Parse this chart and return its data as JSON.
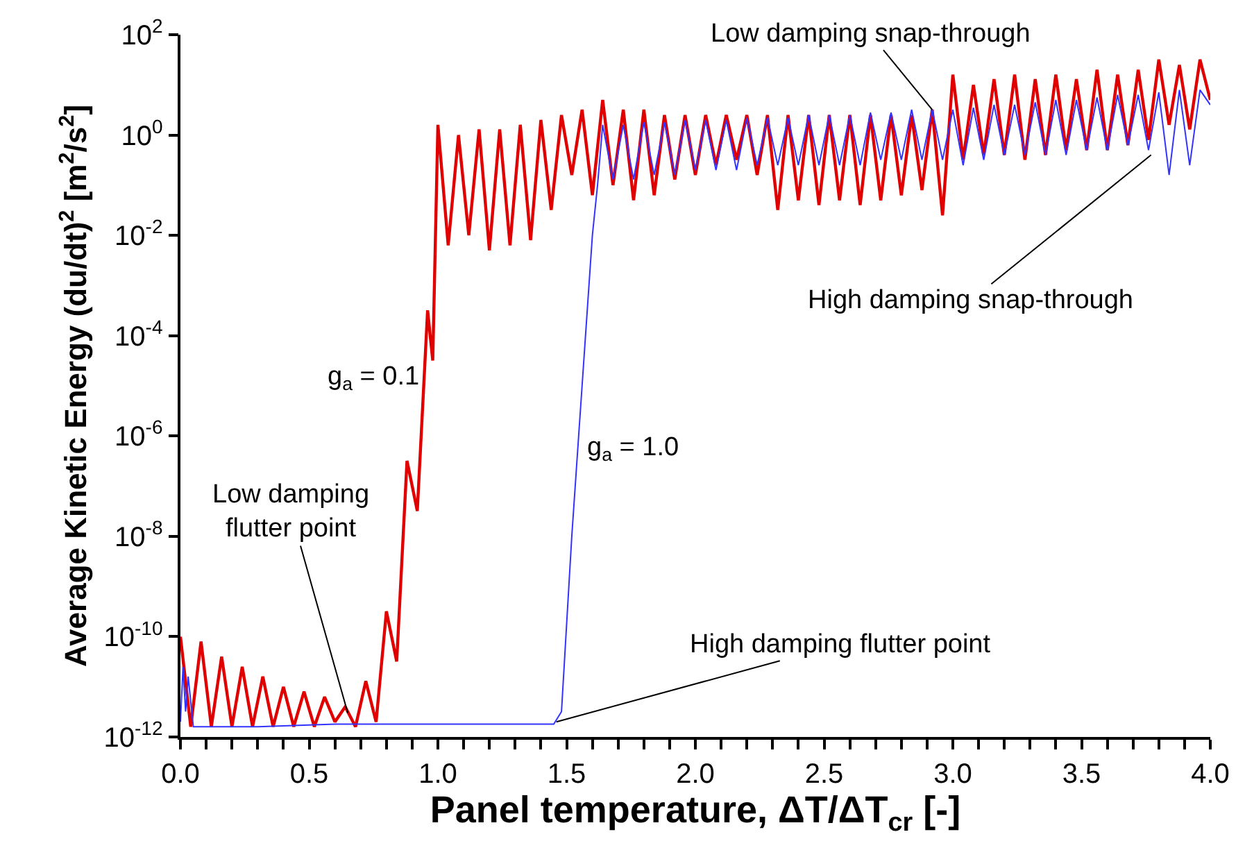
{
  "chart_data": {
    "type": "line",
    "xlabel": "Panel temperature, ΔT/ΔT$_{cr}$ [-]",
    "ylabel": "Average Kinetic Energy (du/dt)$^{2}$ [m$^{2}$/s$^{2}$]",
    "log": "y",
    "marker": "none",
    "line_style": "solid",
    "xlim": [
      0,
      4
    ],
    "ylim": [
      1e-12,
      100
    ],
    "xticks": [
      {
        "value": 0,
        "label": "0.0"
      },
      {
        "value": 0.1,
        "label": null
      },
      {
        "value": 0.2,
        "label": null
      },
      {
        "value": 0.3,
        "label": null
      },
      {
        "value": 0.4,
        "label": null
      },
      0.5,
      {
        "value": 0.6,
        "label": null
      },
      {
        "value": 0.7,
        "label": null
      },
      {
        "value": 0.8,
        "label": null
      },
      {
        "value": 0.9,
        "label": null
      },
      {
        "value": 1,
        "label": "1.0"
      },
      {
        "value": 1.1,
        "label": null
      },
      {
        "value": 1.2,
        "label": null
      },
      {
        "value": 1.3,
        "label": null
      },
      {
        "value": 1.4,
        "label": null
      },
      1.5,
      {
        "value": 1.6,
        "label": null
      },
      {
        "value": 1.7,
        "label": null
      },
      {
        "value": 1.8,
        "label": null
      },
      {
        "value": 1.9,
        "label": null
      },
      {
        "value": 2,
        "label": "2.0"
      },
      {
        "value": 2.1,
        "label": null
      },
      {
        "value": 2.2,
        "label": null
      },
      {
        "value": 2.3,
        "label": null
      },
      {
        "value": 2.4,
        "label": null
      },
      2.5,
      {
        "value": 2.6,
        "label": null
      },
      {
        "value": 2.7,
        "label": null
      },
      {
        "value": 2.8,
        "label": null
      },
      {
        "value": 2.9,
        "label": null
      },
      {
        "value": 3,
        "label": "3.0"
      },
      {
        "value": 3.1,
        "label": null
      },
      {
        "value": 3.2,
        "label": null
      },
      {
        "value": 3.3,
        "label": null
      },
      {
        "value": 3.4,
        "label": null
      },
      3.5,
      {
        "value": 3.6,
        "label": null
      },
      {
        "value": 3.7,
        "label": null
      },
      {
        "value": 3.8,
        "label": null
      },
      {
        "value": 3.9,
        "label": null
      },
      {
        "value": 4,
        "label": "4.0"
      }
    ],
    "yticks": [
      {
        "value": 1e-12,
        "label": "10$^{-12}$"
      },
      {
        "value": 1e-10,
        "label": "10$^{-10}$"
      },
      {
        "value": 1e-08,
        "label": "10$^{-8}$"
      },
      {
        "value": 1e-06,
        "label": "10$^{-6}$"
      },
      {
        "value": 0.0001,
        "label": "10$^{-4}$"
      },
      {
        "value": 0.01,
        "label": "10$^{-2}$"
      },
      {
        "value": 1,
        "label": "10$^{0}$"
      },
      {
        "value": 100,
        "label": "10$^{2}$"
      }
    ],
    "series": [
      {
        "color": "#e00000",
        "x": [
          0,
          0.04,
          0.08,
          0.12,
          0.16,
          0.2,
          0.24,
          0.28,
          0.32,
          0.36,
          0.4,
          0.44,
          0.48,
          0.52,
          0.56,
          0.6,
          0.64,
          0.68,
          0.72,
          0.76,
          0.8,
          0.84,
          0.88,
          0.92,
          0.96,
          0.98,
          1.0,
          1.04,
          1.08,
          1.12,
          1.16,
          1.2,
          1.24,
          1.28,
          1.32,
          1.36,
          1.4,
          1.44,
          1.48,
          1.52,
          1.56,
          1.6,
          1.64,
          1.68,
          1.72,
          1.76,
          1.8,
          1.84,
          1.88,
          1.92,
          1.96,
          2.0,
          2.04,
          2.08,
          2.12,
          2.16,
          2.2,
          2.24,
          2.28,
          2.32,
          2.36,
          2.4,
          2.44,
          2.48,
          2.52,
          2.56,
          2.6,
          2.64,
          2.68,
          2.72,
          2.76,
          2.8,
          2.84,
          2.88,
          2.92,
          2.96,
          3.0,
          3.04,
          3.08,
          3.12,
          3.16,
          3.2,
          3.24,
          3.28,
          3.32,
          3.36,
          3.4,
          3.44,
          3.48,
          3.52,
          3.56,
          3.6,
          3.64,
          3.68,
          3.72,
          3.76,
          3.8,
          3.84,
          3.88,
          3.92,
          3.96,
          4.0
        ],
        "values": [
          1e-10,
          1.6e-12,
          8e-11,
          1.6e-12,
          4e-11,
          1.6e-12,
          2.5e-11,
          1.6e-12,
          1.6e-11,
          1.6e-12,
          1e-11,
          1.6e-12,
          8e-12,
          1.6e-12,
          6.3e-12,
          2e-12,
          4e-12,
          1.6e-12,
          1.3e-11,
          2e-12,
          3.2e-10,
          3.2e-11,
          3.2e-07,
          3.2e-08,
          0.00032,
          3.2e-05,
          1.6,
          0.0063,
          1,
          0.01,
          1.3,
          0.005,
          1.3,
          0.0063,
          1.6,
          0.008,
          2,
          0.032,
          2.5,
          0.16,
          3.2,
          0.063,
          5,
          0.1,
          3.2,
          0.05,
          3.2,
          0.063,
          2.5,
          0.13,
          2.5,
          0.16,
          2.5,
          0.25,
          2.5,
          0.32,
          2.5,
          0.16,
          2.5,
          0.032,
          2.5,
          0.05,
          2.5,
          0.04,
          2.5,
          0.05,
          2.5,
          0.04,
          2.5,
          0.05,
          2.5,
          0.063,
          2.5,
          0.08,
          3.2,
          0.025,
          16,
          0.32,
          10,
          0.4,
          13,
          0.4,
          16,
          0.32,
          13,
          0.4,
          16,
          0.5,
          13,
          0.5,
          20,
          0.5,
          16,
          0.63,
          20,
          0.8,
          32,
          1.6,
          25,
          1.3,
          32,
          5
        ]
      },
      {
        "color": "#3333ff",
        "x": [
          0,
          0.01,
          0.02,
          0.03,
          0.05,
          0.3,
          0.6,
          0.9,
          1.2,
          1.45,
          1.48,
          1.52,
          1.56,
          1.6,
          1.62,
          1.64,
          1.68,
          1.72,
          1.76,
          1.8,
          1.84,
          1.88,
          1.92,
          1.96,
          2.0,
          2.04,
          2.08,
          2.12,
          2.16,
          2.2,
          2.24,
          2.28,
          2.32,
          2.36,
          2.4,
          2.44,
          2.48,
          2.52,
          2.56,
          2.6,
          2.64,
          2.68,
          2.72,
          2.76,
          2.8,
          2.84,
          2.88,
          2.92,
          2.96,
          3.0,
          3.04,
          3.08,
          3.12,
          3.16,
          3.2,
          3.24,
          3.28,
          3.32,
          3.36,
          3.4,
          3.44,
          3.48,
          3.52,
          3.56,
          3.6,
          3.64,
          3.68,
          3.72,
          3.76,
          3.8,
          3.84,
          3.88,
          3.92,
          3.96,
          4.0
        ],
        "values": [
          2e-12,
          2.5e-11,
          3.2e-12,
          1.6e-11,
          1.6e-12,
          1.6e-12,
          1.8e-12,
          1.8e-12,
          1.8e-12,
          1.8e-12,
          3.2e-12,
          1e-08,
          1e-05,
          0.01,
          0.1,
          1.6,
          0.13,
          1.6,
          0.13,
          1.8,
          0.16,
          1.8,
          0.16,
          2,
          0.2,
          2,
          0.2,
          2,
          0.2,
          2.2,
          0.25,
          2.2,
          0.25,
          2.2,
          0.25,
          2.5,
          0.25,
          2.5,
          0.25,
          2.5,
          0.25,
          2.8,
          0.32,
          2.8,
          0.32,
          3.2,
          0.32,
          3.2,
          0.32,
          3.2,
          0.25,
          3.5,
          0.32,
          4,
          0.4,
          4,
          0.4,
          4.5,
          0.4,
          5,
          0.4,
          5,
          0.5,
          5.6,
          0.5,
          6.3,
          0.63,
          6.3,
          0.5,
          7.1,
          0.16,
          7.9,
          0.25,
          7.9,
          4
        ]
      }
    ],
    "annotations": [
      "g$_{a}$ = 0.1",
      "g$_{a}$ = 1.0",
      {
        "text": "Low damping\nflutter point",
        "x": 0.65,
        "y": 3e-12
      },
      {
        "text": "High damping flutter point",
        "x": 1.46,
        "y": 2e-12
      },
      {
        "text": "Low damping snap-through",
        "x": 2.92,
        "y": 3.2
      },
      {
        "text": "High damping snap-through",
        "x": 3.77,
        "y": 0.4
      }
    ]
  }
}
